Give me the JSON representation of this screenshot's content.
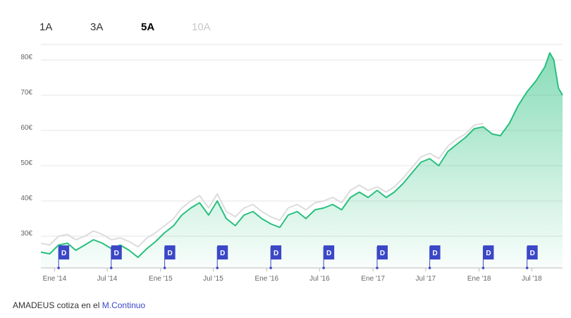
{
  "range_tabs": [
    {
      "label": "1A",
      "state": "normal"
    },
    {
      "label": "3A",
      "state": "normal"
    },
    {
      "label": "5A",
      "state": "active"
    },
    {
      "label": "10A",
      "state": "disabled"
    }
  ],
  "footer": {
    "text": "AMADEUS cotiza en el",
    "link": "M.Continuo"
  },
  "colors": {
    "price_line": "#27c07d",
    "area_top": "#27c07d",
    "compare_line": "#dcdcdc",
    "flag": "#3b47c7",
    "grid": "#e6e6e6",
    "axis": "#bbbbbb"
  },
  "chart_data": {
    "type": "line",
    "title": "",
    "xlabel": "",
    "ylabel": "",
    "ylim": [
      21,
      84
    ],
    "y_ticks": [
      30,
      40,
      50,
      60,
      70,
      80
    ],
    "y_tick_labels": [
      "30€",
      "40€",
      "50€",
      "60€",
      "70€",
      "80€"
    ],
    "x_ticks": [
      "2014-01-01",
      "2014-07-01",
      "2015-01-01",
      "2015-07-01",
      "2016-01-01",
      "2016-07-01",
      "2017-01-01",
      "2017-07-01",
      "2018-01-01",
      "2018-07-01"
    ],
    "x_tick_labels": [
      "Ene '14",
      "Jul '14",
      "Ene '15",
      "Jul '15",
      "Ene '16",
      "Jul '16",
      "Ene '17",
      "Jul '17",
      "Ene '18",
      "Jul '18"
    ],
    "x_range": [
      "2013-11-15",
      "2018-10-15"
    ],
    "series": [
      {
        "x": [
          "2013-11-15",
          "2013-12-15",
          "2014-01-15",
          "2014-02-15",
          "2014-03-15",
          "2014-04-15",
          "2014-05-15",
          "2014-06-15",
          "2014-07-15",
          "2014-08-15",
          "2014-09-15",
          "2014-10-15",
          "2014-11-15",
          "2014-12-15",
          "2015-01-15",
          "2015-02-15",
          "2015-03-15",
          "2015-04-15",
          "2015-05-15",
          "2015-06-15",
          "2015-07-15",
          "2015-08-15",
          "2015-09-15",
          "2015-10-15",
          "2015-11-15",
          "2015-12-15",
          "2016-01-15",
          "2016-02-15",
          "2016-03-15",
          "2016-04-15",
          "2016-05-15",
          "2016-06-15",
          "2016-07-15",
          "2016-08-15",
          "2016-09-15",
          "2016-10-15",
          "2016-11-15",
          "2016-12-15",
          "2017-01-15",
          "2017-02-15",
          "2017-03-15",
          "2017-04-15",
          "2017-05-15",
          "2017-06-15",
          "2017-07-15",
          "2017-08-15",
          "2017-09-15",
          "2017-10-15",
          "2017-11-15",
          "2017-12-15",
          "2018-01-15",
          "2018-02-15",
          "2018-03-15",
          "2018-04-15",
          "2018-05-15",
          "2018-06-15",
          "2018-07-15",
          "2018-08-15",
          "2018-09-01",
          "2018-09-15",
          "2018-10-01",
          "2018-10-15"
        ],
        "y": [
          25.5,
          25.0,
          27.5,
          28.0,
          26.0,
          27.5,
          29.0,
          28.0,
          26.5,
          27.5,
          26.0,
          24.0,
          26.5,
          28.5,
          31.0,
          33.0,
          36.0,
          38.0,
          39.5,
          36.0,
          40.0,
          35.0,
          33.0,
          36.0,
          37.0,
          35.0,
          33.5,
          32.5,
          36.0,
          37.0,
          35.0,
          37.5,
          38.0,
          39.0,
          37.5,
          41.0,
          42.5,
          41.0,
          43.0,
          41.0,
          42.5,
          45.0,
          48.0,
          51.0,
          52.0,
          50.0,
          54.0,
          56.0,
          58.0,
          60.5,
          61.0,
          59.0,
          58.5,
          62.0,
          67.0,
          71.0,
          74.0,
          78.0,
          82.0,
          80.0,
          72.0,
          70.0
        ]
      },
      {
        "x": [
          "2013-11-15",
          "2013-12-15",
          "2014-01-15",
          "2014-02-15",
          "2014-03-15",
          "2014-04-15",
          "2014-05-15",
          "2014-06-15",
          "2014-07-15",
          "2014-08-15",
          "2014-09-15",
          "2014-10-15",
          "2014-11-15",
          "2014-12-15",
          "2015-01-15",
          "2015-02-15",
          "2015-03-15",
          "2015-04-15",
          "2015-05-15",
          "2015-06-15",
          "2015-07-15",
          "2015-08-15",
          "2015-09-15",
          "2015-10-15",
          "2015-11-15",
          "2015-12-15",
          "2016-01-15",
          "2016-02-15",
          "2016-03-15",
          "2016-04-15",
          "2016-05-15",
          "2016-06-15",
          "2016-07-15",
          "2016-08-15",
          "2016-09-15",
          "2016-10-15",
          "2016-11-15",
          "2016-12-15",
          "2017-01-15",
          "2017-02-15",
          "2017-03-15",
          "2017-04-15",
          "2017-05-15",
          "2017-06-15",
          "2017-07-15",
          "2017-08-15",
          "2017-09-15",
          "2017-10-15",
          "2017-11-15",
          "2017-12-15",
          "2018-01-15"
        ],
        "y": [
          28.0,
          27.5,
          30.0,
          30.5,
          29.0,
          30.0,
          31.5,
          30.5,
          29.0,
          29.5,
          28.5,
          27.0,
          29.5,
          31.0,
          33.0,
          35.0,
          38.0,
          40.0,
          41.5,
          38.0,
          42.0,
          37.0,
          35.5,
          38.0,
          39.0,
          37.0,
          35.5,
          34.5,
          38.0,
          39.0,
          37.5,
          39.5,
          40.0,
          41.0,
          39.5,
          43.0,
          44.5,
          43.0,
          44.0,
          42.5,
          44.0,
          46.5,
          49.5,
          52.5,
          53.5,
          52.0,
          55.5,
          57.5,
          59.0,
          61.5,
          62.0
        ]
      }
    ],
    "dividend_markers": [
      {
        "date": "2014-01-15",
        "label": "D"
      },
      {
        "date": "2014-07-15",
        "label": "D"
      },
      {
        "date": "2015-01-15",
        "label": "D"
      },
      {
        "date": "2015-07-15",
        "label": "D"
      },
      {
        "date": "2016-01-15",
        "label": "D"
      },
      {
        "date": "2016-07-15",
        "label": "D"
      },
      {
        "date": "2017-01-15",
        "label": "D"
      },
      {
        "date": "2017-07-15",
        "label": "D"
      },
      {
        "date": "2018-01-15",
        "label": "D"
      },
      {
        "date": "2018-06-15",
        "label": "D"
      }
    ],
    "grid": true,
    "legend": "none"
  }
}
